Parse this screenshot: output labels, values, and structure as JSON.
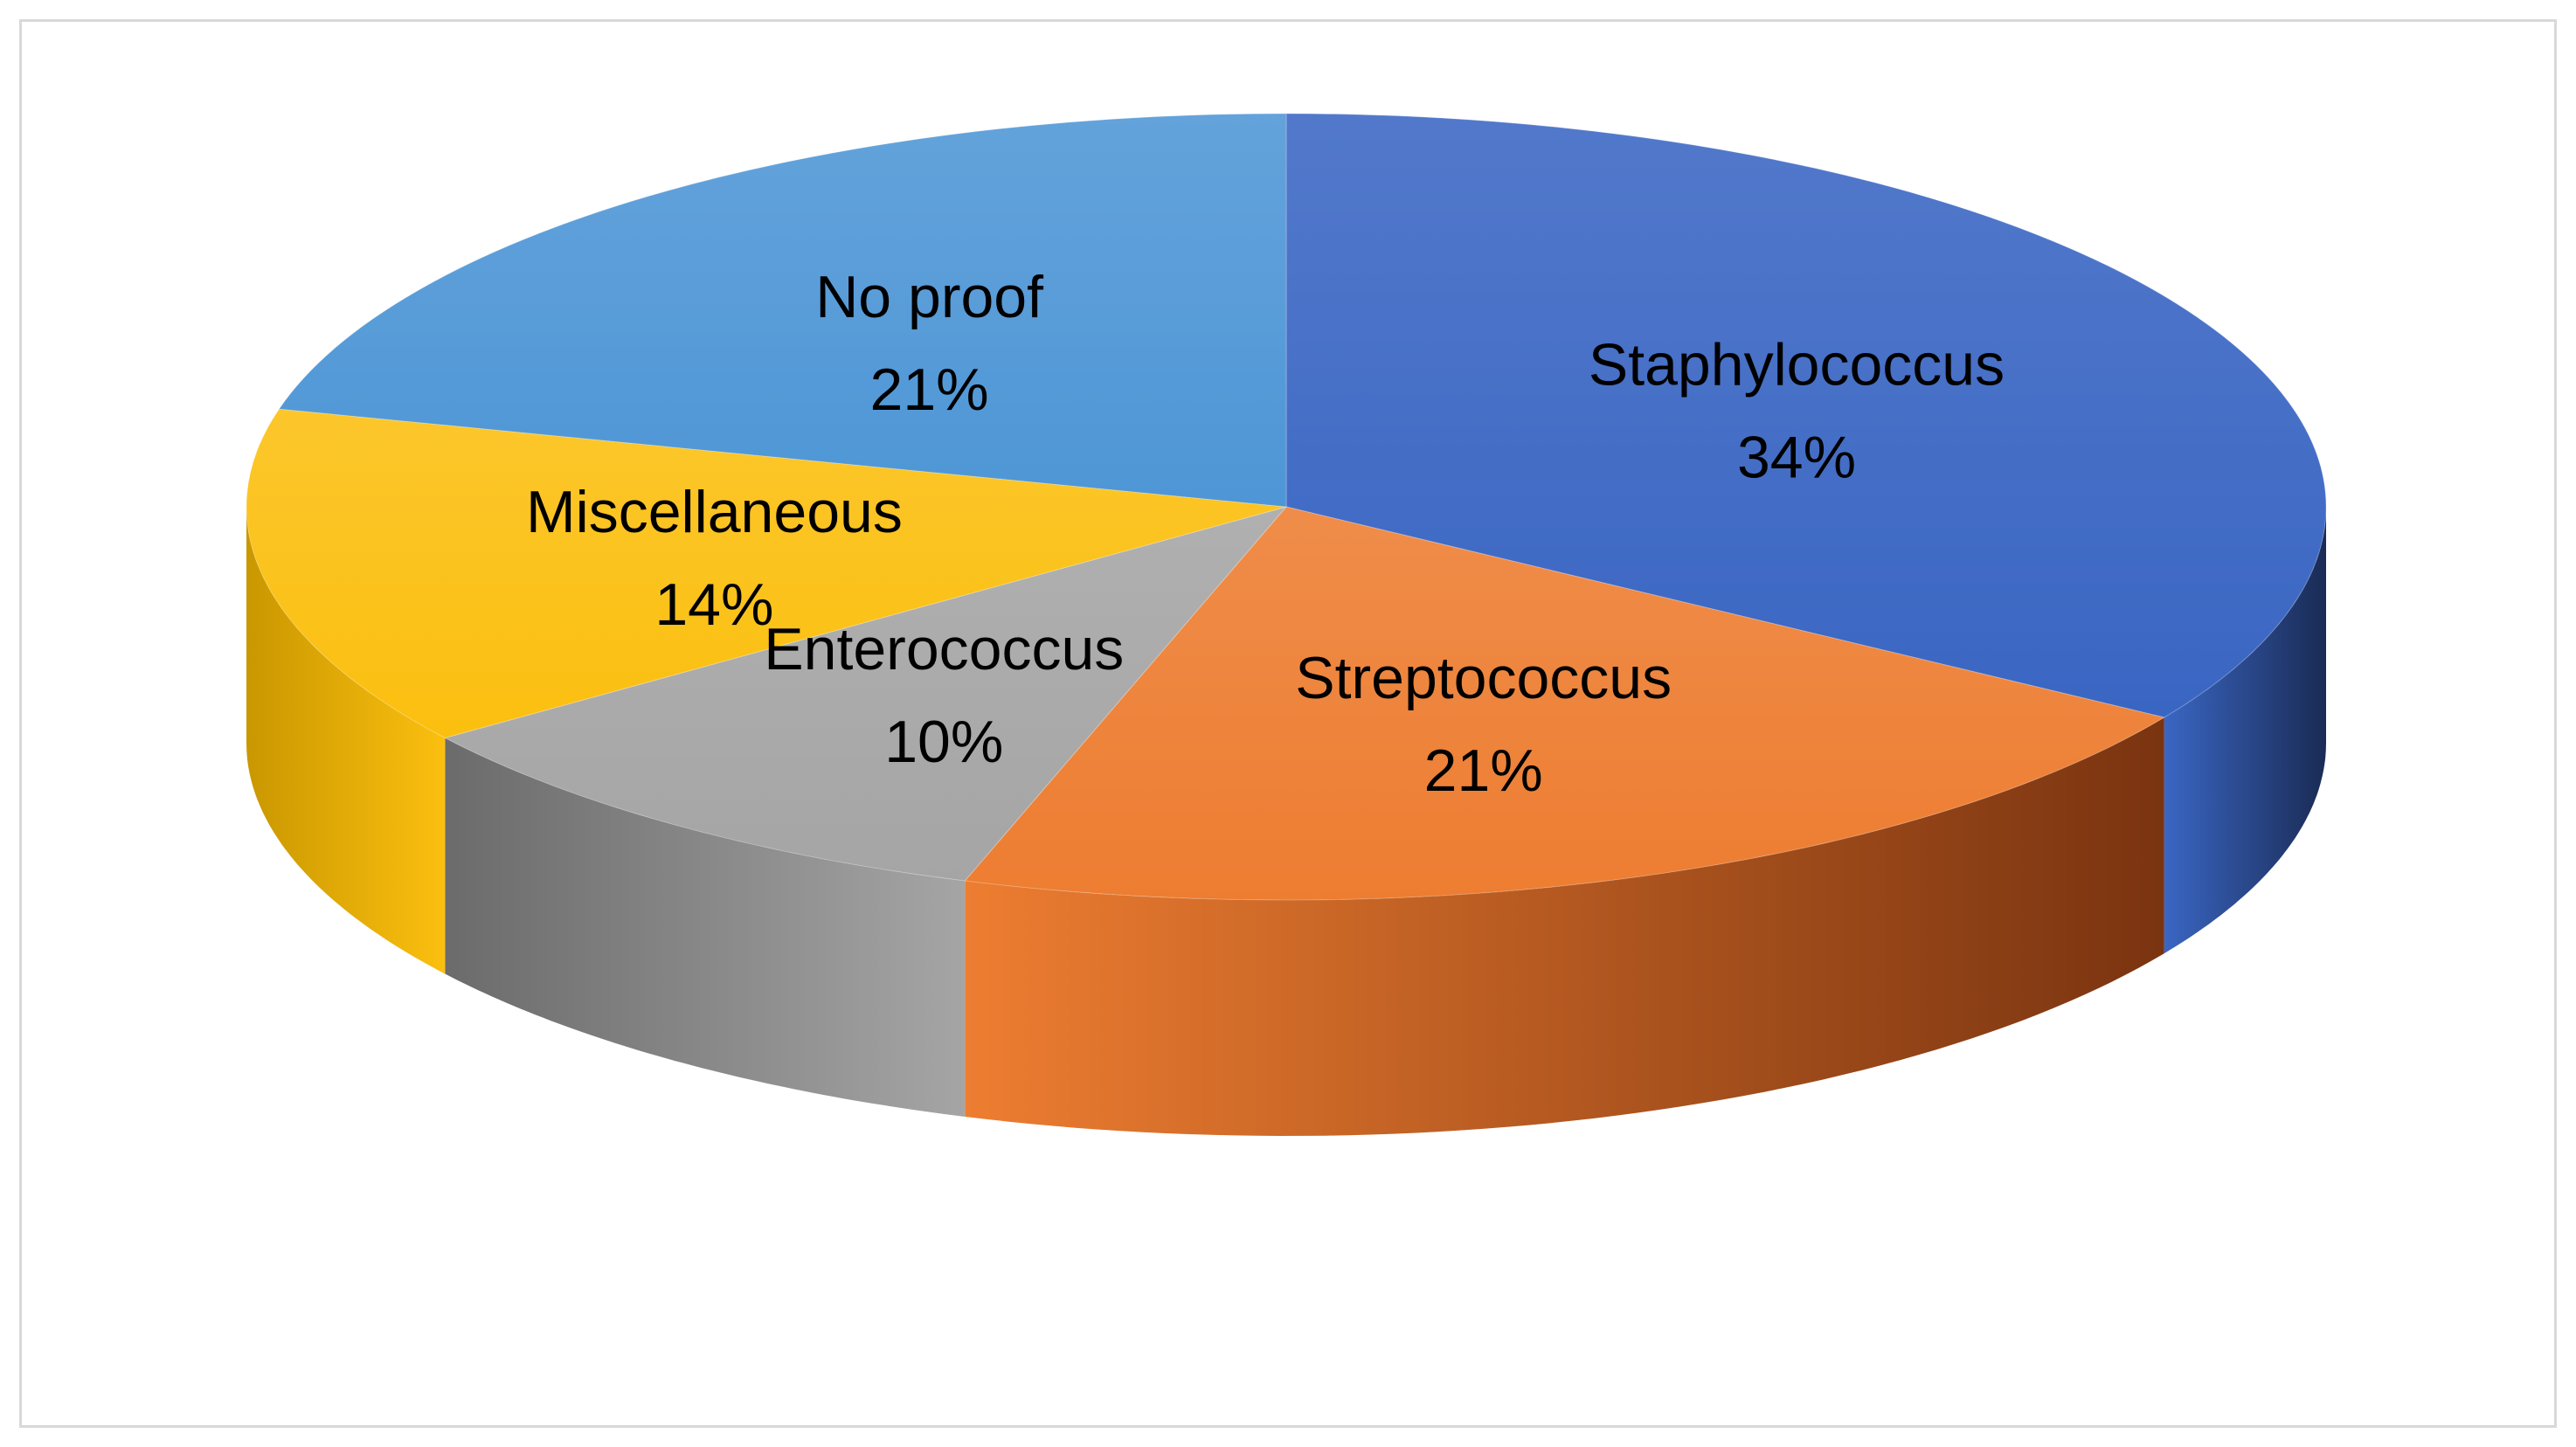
{
  "chart_data": {
    "type": "pie",
    "style": "3d",
    "start": "12 o'clock",
    "direction": "clockwise",
    "slices": [
      {
        "label": "Staphylococcus",
        "value": 34,
        "value_label": "34%",
        "color": "#3a66c3",
        "side_color": "#1a2b55"
      },
      {
        "label": "Streptococcus",
        "value": 21,
        "value_label": "21%",
        "color": "#ed7d31",
        "side_color": "#7a3410"
      },
      {
        "label": "Enterococcus",
        "value": 10,
        "value_label": "10%",
        "color": "#a5a5a5",
        "side_color": "#6b6b6b"
      },
      {
        "label": "Miscellaneous",
        "value": 14,
        "value_label": "14%",
        "color": "#fbbf0f",
        "side_color": "#c99700"
      },
      {
        "label": "No proof",
        "value": 21,
        "value_label": "21%",
        "color": "#4e96d6",
        "side_color": "#2f6aa6"
      }
    ]
  }
}
